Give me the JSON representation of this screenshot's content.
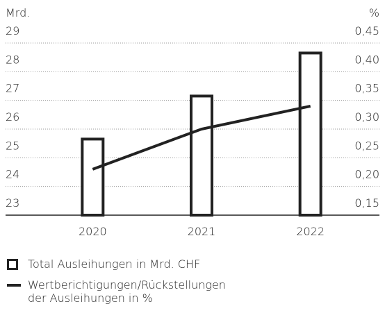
{
  "chart_data": {
    "type": "bar",
    "y_axis_label": "Mrd.",
    "y2_axis_label": "%",
    "categories": [
      "2020",
      "2021",
      "2022"
    ],
    "series": [
      {
        "name": "Total Ausleihungen in Mrd. CHF",
        "type": "bar",
        "color": "#222222",
        "values": [
          25.7,
          27.2,
          28.7
        ]
      },
      {
        "name": "Wertberichtigungen/Rückstellungen der Ausleihungen in %",
        "type": "line",
        "axis": "y2",
        "color": "#222222",
        "values": [
          0.23,
          0.3,
          0.34
        ]
      }
    ],
    "ylim": [
      23,
      29
    ],
    "yticks": [
      23,
      24,
      25,
      26,
      27,
      28,
      29
    ],
    "y2lim": [
      0.15,
      0.45
    ],
    "y2ticks": [
      {
        "value": 0.15,
        "label": "0,15"
      },
      {
        "value": 0.2,
        "label": "0,20"
      },
      {
        "value": 0.25,
        "label": "0,25"
      },
      {
        "value": 0.3,
        "label": "0,30"
      },
      {
        "value": 0.35,
        "label": "0,35"
      },
      {
        "value": 0.4,
        "label": "0,40"
      },
      {
        "value": 0.45,
        "label": "0,45"
      }
    ],
    "grid": true
  }
}
